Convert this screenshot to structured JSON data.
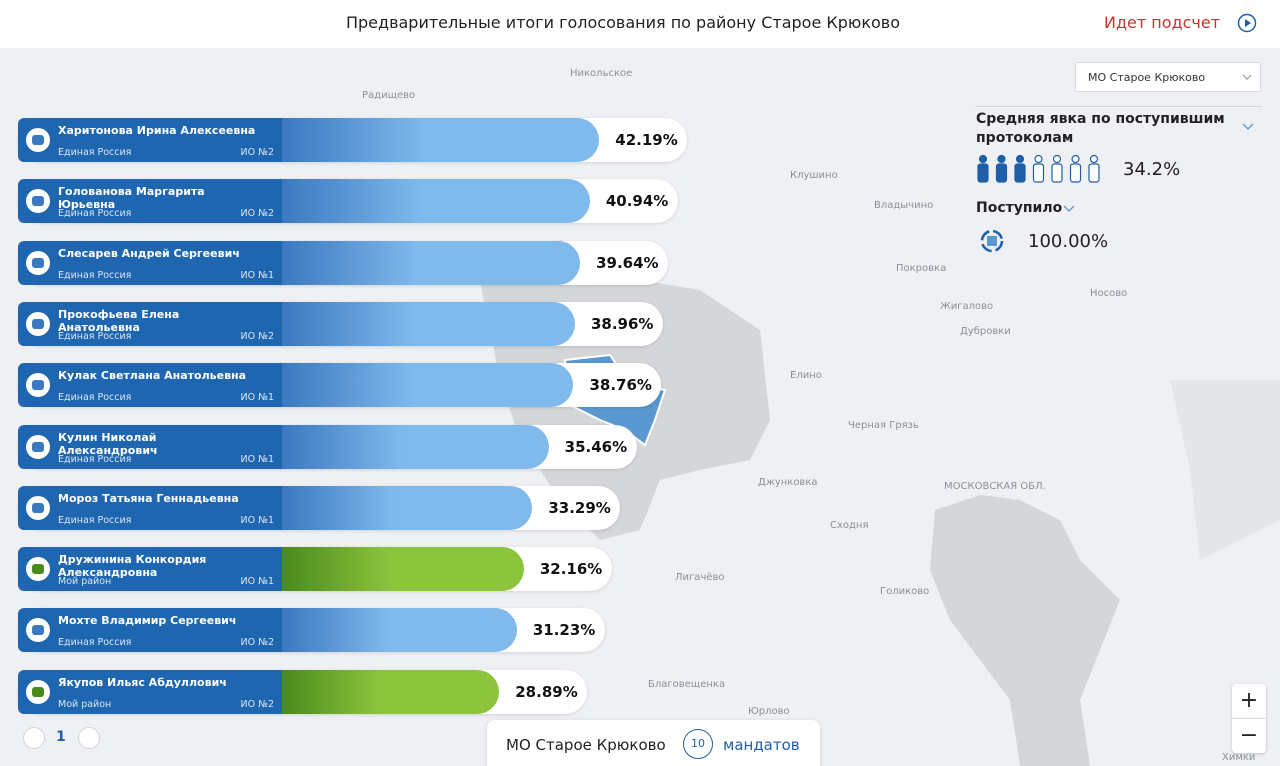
{
  "header": {
    "title": "Предварительные итоги голосования по району Старое Крюково",
    "status": "Идет подсчет"
  },
  "district_select": "МО Старое Крюково",
  "turnout": {
    "label": "Средняя явка по поступившим протоколам",
    "value": "34.2%"
  },
  "received": {
    "label": "Поступило",
    "value": "100.00%"
  },
  "candidates": [
    {
      "name": "Харитонова Ирина Алексеевна",
      "party": "Единая Россия",
      "district": "ИО №2",
      "value": 42.19,
      "value_label": "42.19%",
      "gradient": [
        "#3a78c0",
        "#80b9ec"
      ]
    },
    {
      "name": "Голованова Маргарита Юрьевна",
      "party": "Единая Россия",
      "district": "ИО №2",
      "value": 40.94,
      "value_label": "40.94%",
      "gradient": [
        "#3a78c0",
        "#80b9ec"
      ]
    },
    {
      "name": "Слесарев Андрей Сергеевич",
      "party": "Единая Россия",
      "district": "ИО №1",
      "value": 39.64,
      "value_label": "39.64%",
      "gradient": [
        "#3a78c0",
        "#80b9ec"
      ]
    },
    {
      "name": "Прокофьева Елена Анатольевна",
      "party": "Единая Россия",
      "district": "ИО №2",
      "value": 38.96,
      "value_label": "38.96%",
      "gradient": [
        "#3a78c0",
        "#80b9ec"
      ]
    },
    {
      "name": "Кулак Светлана Анатольевна",
      "party": "Единая Россия",
      "district": "ИО №1",
      "value": 38.76,
      "value_label": "38.76%",
      "gradient": [
        "#3a78c0",
        "#80b9ec"
      ]
    },
    {
      "name": "Кулин Николай Александрович",
      "party": "Единая Россия",
      "district": "ИО №1",
      "value": 35.46,
      "value_label": "35.46%",
      "gradient": [
        "#3a78c0",
        "#80b9ec"
      ]
    },
    {
      "name": "Мороз Татьяна Геннадьевна",
      "party": "Единая Россия",
      "district": "ИО №1",
      "value": 33.29,
      "value_label": "33.29%",
      "gradient": [
        "#3a78c0",
        "#80b9ec"
      ]
    },
    {
      "name": "Дружинина Конкордия Александровна",
      "party": "Мой район",
      "district": "ИО №1",
      "value": 32.16,
      "value_label": "32.16%",
      "gradient": [
        "#4a8a1c",
        "#8cc43c"
      ]
    },
    {
      "name": "Мохте Владимир Сергеевич",
      "party": "Единая Россия",
      "district": "ИО №2",
      "value": 31.23,
      "value_label": "31.23%",
      "gradient": [
        "#3a78c0",
        "#80b9ec"
      ]
    },
    {
      "name": "Якупов Ильяс Абдуллович",
      "party": "Мой район",
      "district": "ИО №2",
      "value": 28.89,
      "value_label": "28.89%",
      "gradient": [
        "#4a8a1c",
        "#8cc43c"
      ]
    }
  ],
  "pagination": {
    "page": 1
  },
  "footer": {
    "district": "МО Старое Крюково",
    "mandates": 10,
    "mandates_label": "мандатов"
  },
  "zoom": {
    "in": "+",
    "out": "−"
  },
  "map": {
    "labels": [
      "Радищево",
      "Никольское",
      "Клушино",
      "Владычино",
      "Покровка",
      "Носово",
      "Жигалово",
      "Дубровки",
      "Елино",
      "Черная Грязь",
      "Джунковка",
      "МОСКОВСКАЯ ОБЛ.",
      "Сходня",
      "Лигачёво",
      "Голиково",
      "Благовещенка",
      "Юрлово",
      "Химки"
    ]
  }
}
